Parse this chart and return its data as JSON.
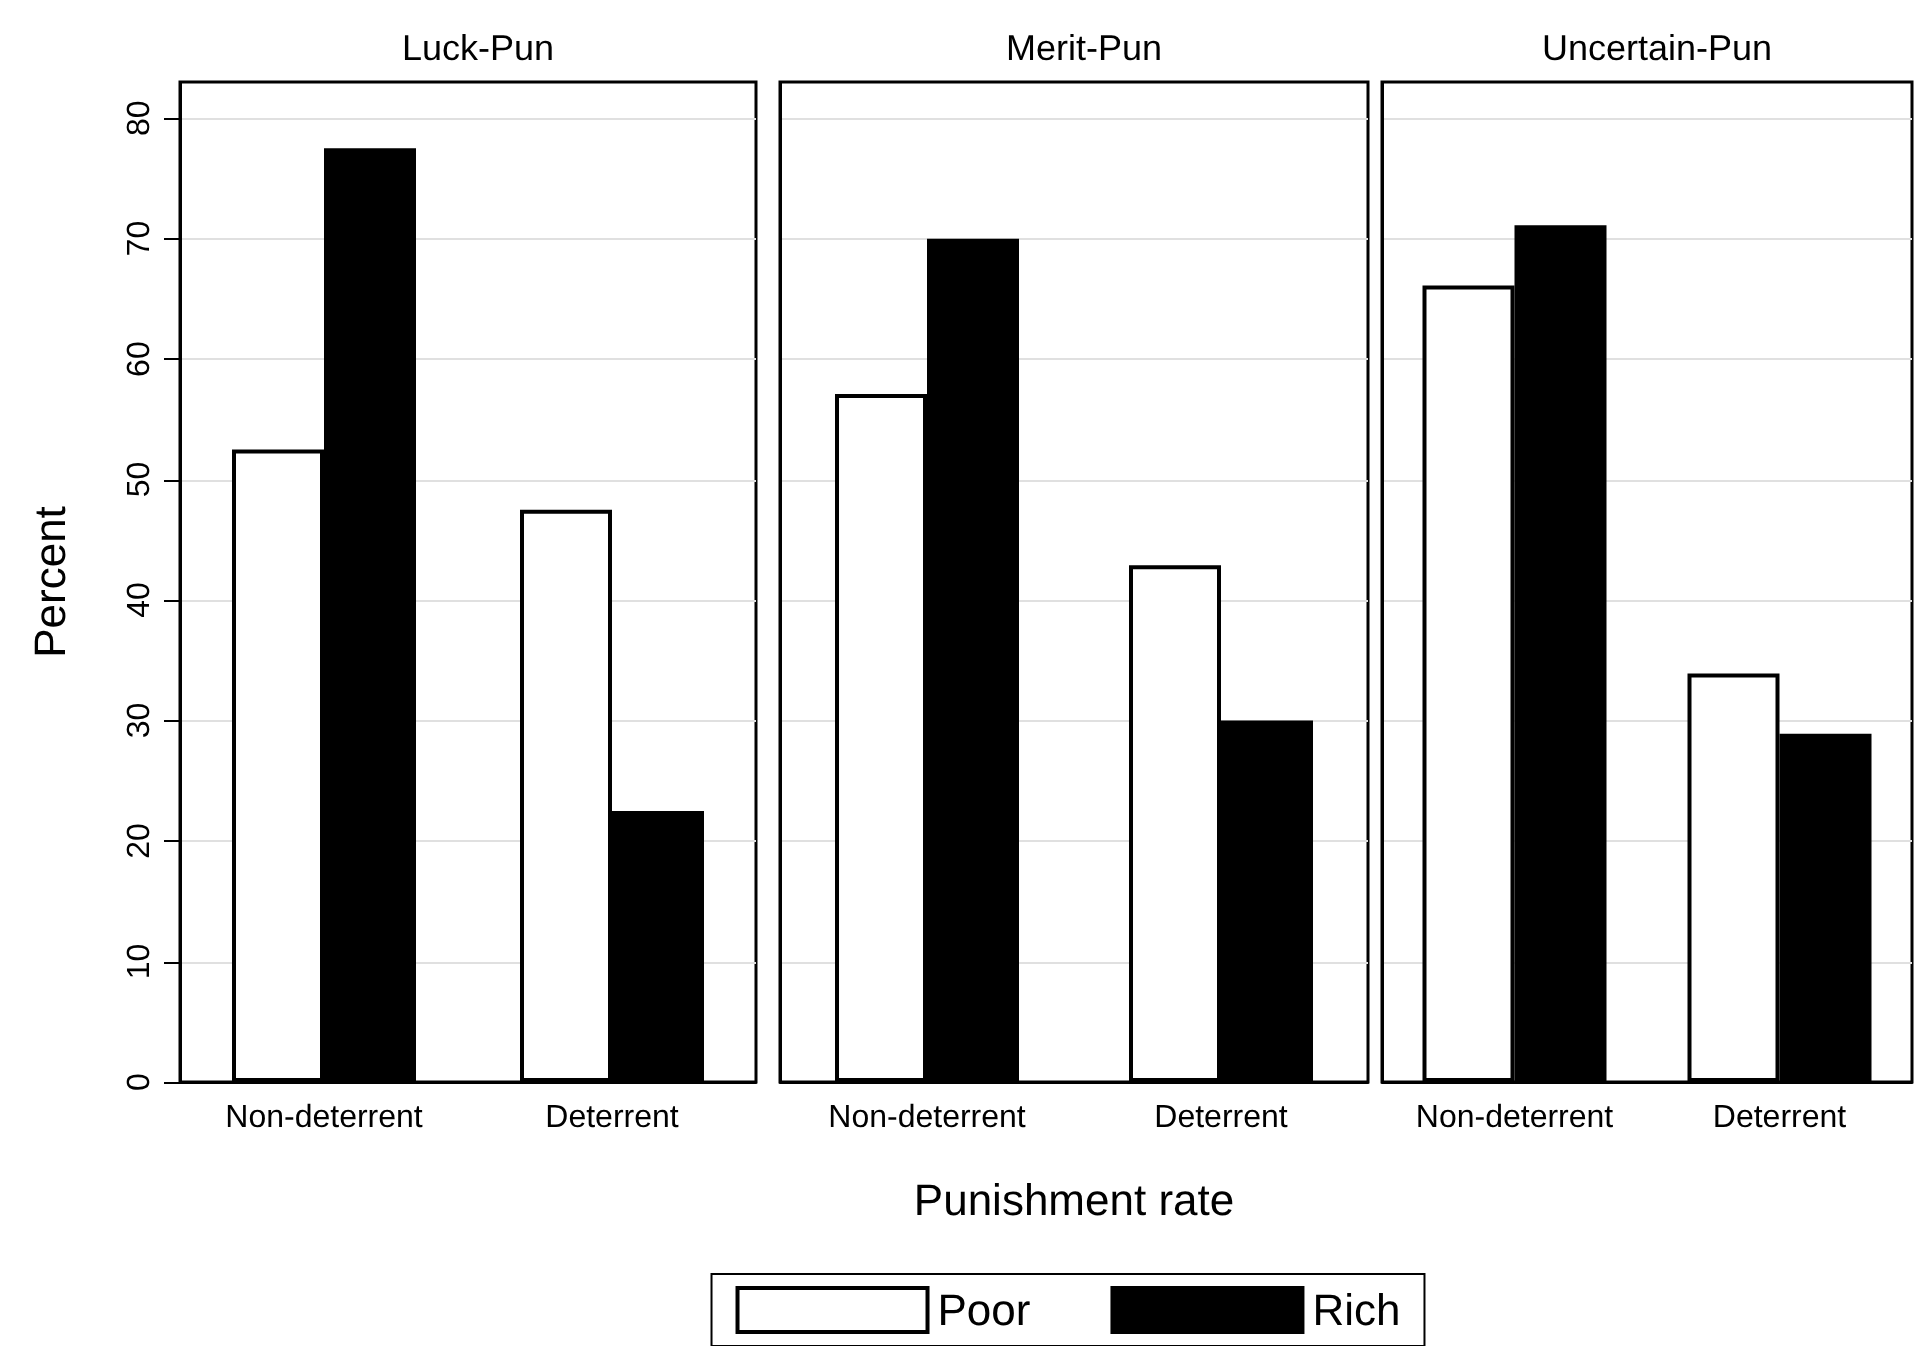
{
  "chart_data": [
    {
      "type": "bar",
      "title": "Luck-Pun",
      "ylabel": "Percent",
      "categories": [
        "Non-deterrent",
        "Deterrent"
      ],
      "ylim": [
        0,
        83
      ],
      "yticks": [
        0,
        10,
        20,
        30,
        40,
        50,
        60,
        70,
        80
      ],
      "grid": "y",
      "legend": false,
      "series": [
        {
          "color": "#ffffff",
          "values": [
            52.5,
            47.5
          ]
        },
        {
          "color": "#000000",
          "values": [
            77.5,
            22.5
          ]
        }
      ]
    },
    {
      "type": "bar",
      "title": "Merit-Pun",
      "xlabel": "Punishment rate",
      "categories": [
        "Non-deterrent",
        "Deterrent"
      ],
      "ylim": [
        0,
        83
      ],
      "yticks": [
        0,
        10,
        20,
        30,
        40,
        50,
        60,
        70,
        80
      ],
      "grid": "y",
      "legend": "bottom",
      "tick_labels": "x",
      "series": [
        {
          "name": "Poor",
          "color": "#ffffff",
          "values": [
            57.1,
            42.9
          ]
        },
        {
          "name": "Rich",
          "color": "#000000",
          "values": [
            70,
            30
          ]
        }
      ]
    },
    {
      "type": "bar",
      "title": "Uncertain-Pun",
      "categories": [
        "Non-deterrent",
        "Deterrent"
      ],
      "ylim": [
        0,
        83
      ],
      "yticks": [
        0,
        10,
        20,
        30,
        40,
        50,
        60,
        70,
        80
      ],
      "grid": "y",
      "legend": false,
      "tick_labels": "x",
      "series": [
        {
          "color": "#ffffff",
          "values": [
            66.1,
            33.9
          ]
        },
        {
          "color": "#000000",
          "values": [
            71.1,
            28.9
          ]
        }
      ]
    }
  ]
}
